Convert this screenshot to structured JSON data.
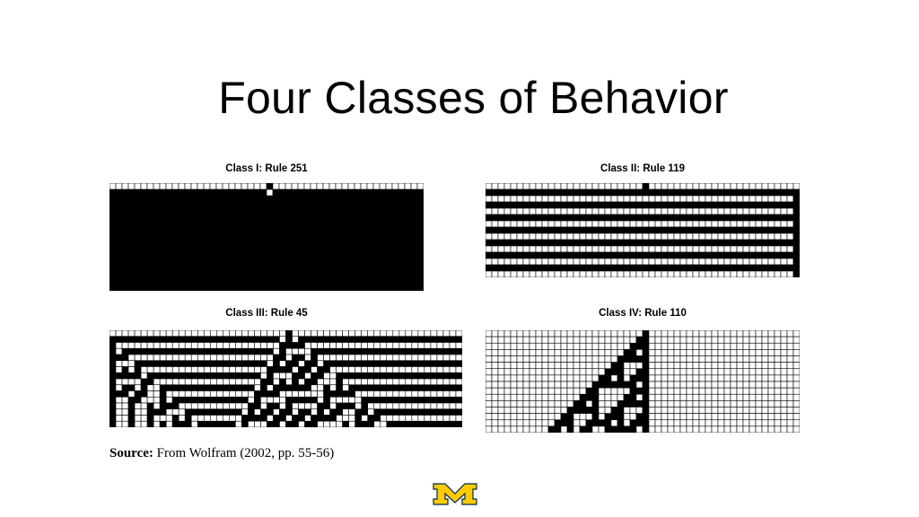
{
  "slide": {
    "title": "Four Classes of Behavior",
    "source_label": "Source:",
    "source_text": "From Wolfram (2002, pp. 55-56)"
  },
  "panels": [
    {
      "label": "Class I: Rule 251",
      "rule": 251
    },
    {
      "label": "Class II: Rule 119",
      "rule": 119
    },
    {
      "label": "Class III: Rule 45",
      "rule": 45
    },
    {
      "label": "Class IV: Rule 110",
      "rule": 110
    }
  ],
  "colors": {
    "cell_on": "#000000",
    "cell_off": "#ffffff",
    "logo_maize": "#FFCB05",
    "logo_blue": "#00274C"
  },
  "logo": {
    "icon": "block-m-logo"
  }
}
